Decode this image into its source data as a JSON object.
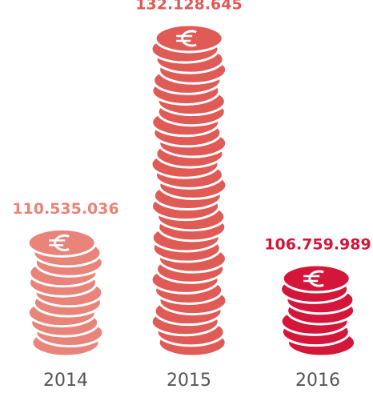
{
  "chart_data": {
    "type": "pictorial-bar",
    "categories": [
      "2014",
      "2015",
      "2016"
    ],
    "values": [
      110535036,
      132128645,
      106759989
    ],
    "value_labels": [
      "110.535.036",
      "132.128.645",
      "106.759.989"
    ],
    "colors": [
      "#e8847a",
      "#e05a56",
      "#d4163a"
    ],
    "ylim": [
      100000000,
      135000000
    ]
  }
}
